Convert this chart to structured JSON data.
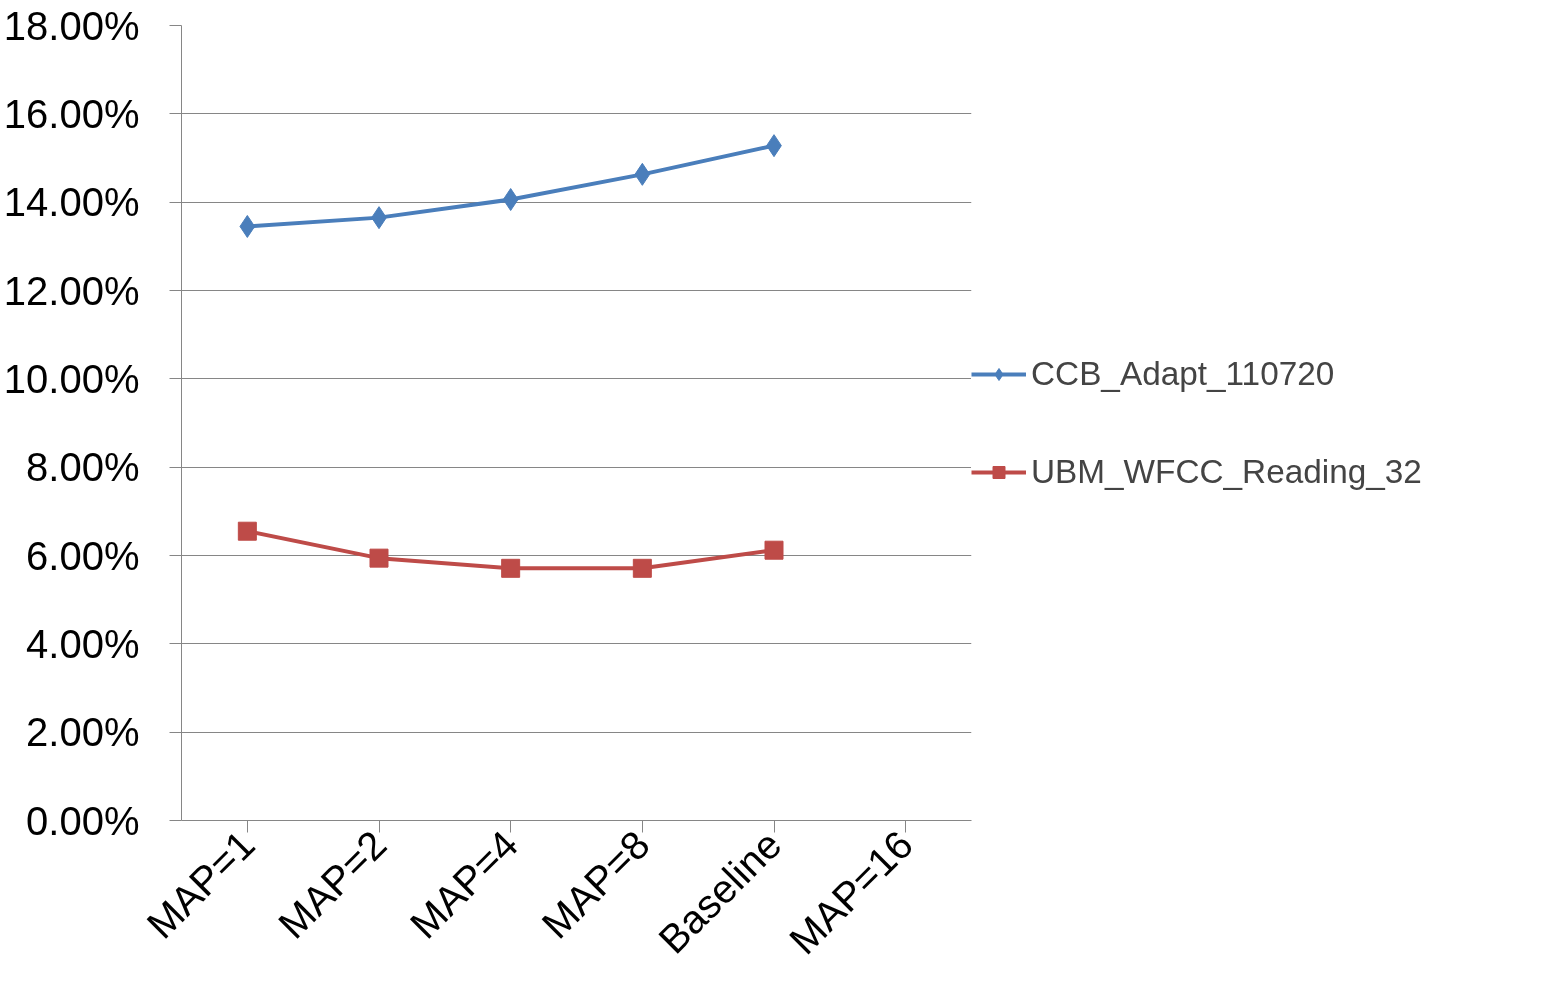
{
  "chart_data": {
    "type": "line",
    "categories": [
      "MAP=1",
      "MAP=2",
      "MAP=4",
      "MAP=8",
      "Baseline",
      "MAP=16"
    ],
    "series": [
      {
        "name": "CCB_Adapt_110720",
        "color": "#4a7ebb",
        "marker": "diamond",
        "values": [
          13.45,
          13.65,
          14.06,
          14.63,
          15.28,
          null
        ]
      },
      {
        "name": "UBM_WFCC_Reading_32",
        "color": "#be4b48",
        "marker": "square",
        "values": [
          6.55,
          5.94,
          5.71,
          5.71,
          6.12,
          null
        ]
      }
    ],
    "ylim": [
      0,
      18
    ],
    "yticks": [
      {
        "value": 0,
        "label": "0.00%"
      },
      {
        "value": 2,
        "label": "2.00%"
      },
      {
        "value": 4,
        "label": "4.00%"
      },
      {
        "value": 6,
        "label": "6.00%"
      },
      {
        "value": 8,
        "label": "8.00%"
      },
      {
        "value": 10,
        "label": "10.00%"
      },
      {
        "value": 12,
        "label": "12.00%"
      },
      {
        "value": 14,
        "label": "14.00%"
      },
      {
        "value": 16,
        "label": "16.00%"
      },
      {
        "value": 18,
        "label": "18.00%"
      }
    ],
    "grid": "y",
    "legend": "right",
    "line_style": "solid"
  }
}
